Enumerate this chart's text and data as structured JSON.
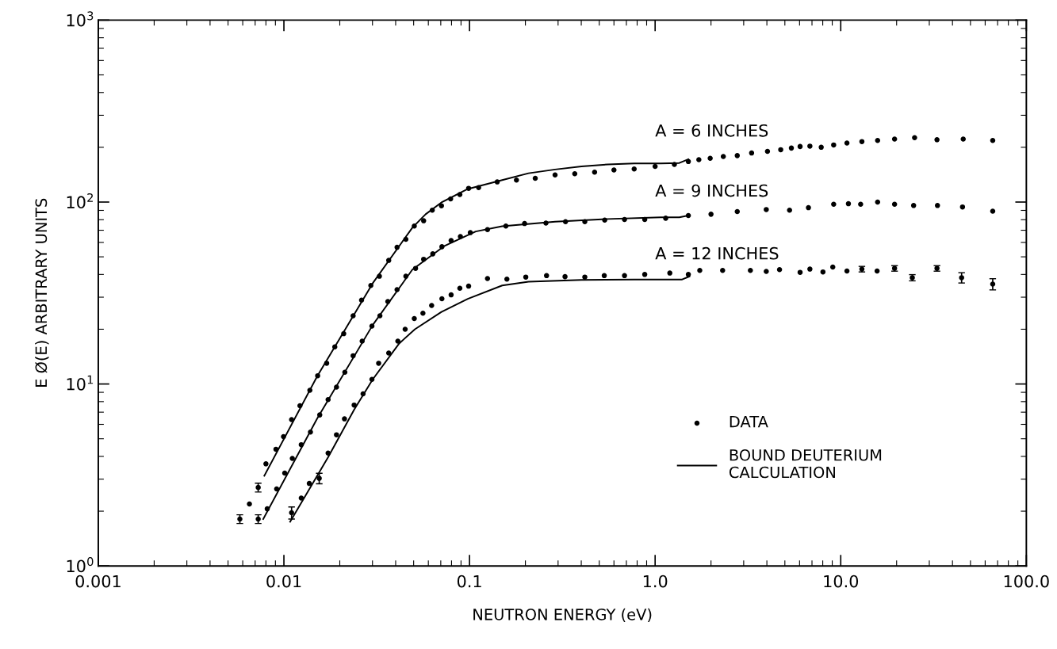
{
  "chart_data": {
    "type": "scatter",
    "xlabel": "NEUTRON ENERGY (eV)",
    "ylabel": "E Ø(E) ARBITRARY UNITS",
    "log": "xy",
    "xlim": [
      0.001,
      100
    ],
    "ylim": [
      1,
      1000
    ],
    "xticks": [
      {
        "value": 0.001,
        "label": "0.001"
      },
      {
        "value": 0.01,
        "label": "0.01"
      },
      {
        "value": 0.1,
        "label": "0.1"
      },
      {
        "value": 1,
        "label": "1.0"
      },
      {
        "value": 10,
        "label": "10.0"
      },
      {
        "value": 100,
        "label": "100.0"
      }
    ],
    "yticks": [
      {
        "value": 1,
        "label": "10$^{0}$"
      },
      {
        "value": 10,
        "label": "10$^{1}$"
      },
      {
        "value": 100,
        "label": "10$^{2}$"
      },
      {
        "value": 1000,
        "label": "10$^{3}$"
      }
    ],
    "grid": false,
    "legend": "bottom right",
    "line_style": "solid",
    "annotations": [
      "A = 6 INCHES",
      "A = 9 INCHES",
      "A = 12 INCHES"
    ],
    "series": [
      {
        "name": "DATA",
        "marker": "circle",
        "color": "#000000",
        "x": [
          0.00579,
          0.00652,
          0.00727,
          0.008,
          0.00906,
          0.00995,
          0.011,
          0.0122,
          0.0138,
          0.0152,
          0.017,
          0.0188,
          0.021,
          0.0236,
          0.0262,
          0.0294,
          0.0327,
          0.0367,
          0.0407,
          0.0454,
          0.0504,
          0.0566,
          0.063,
          0.0706,
          0.0791,
          0.0887,
          0.0989,
          0.112,
          0.141,
          0.179,
          0.226,
          0.289,
          0.369,
          0.472,
          0.6,
          0.771,
          1.0,
          1.27,
          1.51,
          1.72,
          1.98,
          2.33,
          2.77,
          3.31,
          4.03,
          4.75,
          5.42,
          6.04,
          6.82,
          7.85,
          9.16,
          10.8,
          13.0,
          15.8,
          19.5,
          25.0,
          33.0,
          45.7,
          65.9
        ],
        "values": [
          1.81,
          2.19,
          2.7,
          3.64,
          4.38,
          5.14,
          6.37,
          7.6,
          9.23,
          11.1,
          13.0,
          16.0,
          18.9,
          23.7,
          28.9,
          34.8,
          39.1,
          47.8,
          56.4,
          62.4,
          73.8,
          78.9,
          90.2,
          95.4,
          104,
          110,
          119,
          120,
          129,
          132,
          135,
          141,
          143,
          146,
          150,
          152,
          157,
          161,
          167,
          171,
          174,
          178,
          180,
          186,
          190,
          194,
          198,
          202,
          203,
          200,
          206,
          211,
          215,
          218,
          222,
          226,
          220,
          222,
          218
        ],
        "errors": [
          0.1,
          null,
          0.15,
          null,
          null,
          null,
          null,
          null,
          null,
          null,
          null,
          null,
          null,
          null,
          null,
          null,
          null,
          null,
          null,
          null,
          null,
          null,
          null,
          null,
          null,
          null,
          null,
          null,
          null,
          null,
          null,
          null,
          null,
          null,
          null,
          null,
          null,
          null,
          null,
          null,
          null,
          null,
          null,
          null,
          null,
          null,
          null,
          null,
          null,
          null,
          null,
          null,
          null,
          null,
          null,
          null,
          null,
          null,
          null
        ]
      },
      {
        "marker": "circle",
        "color": "#000000",
        "x": [
          0.00727,
          0.00813,
          0.00914,
          0.0101,
          0.0111,
          0.0124,
          0.0139,
          0.0156,
          0.0173,
          0.0192,
          0.0213,
          0.0236,
          0.0264,
          0.0298,
          0.0329,
          0.0363,
          0.0407,
          0.0454,
          0.0512,
          0.0566,
          0.0634,
          0.071,
          0.0796,
          0.0893,
          0.101,
          0.125,
          0.157,
          0.198,
          0.258,
          0.329,
          0.418,
          0.535,
          0.684,
          0.879,
          1.14,
          1.51,
          2.0,
          2.77,
          3.97,
          5.3,
          6.7,
          9.16,
          11.0,
          12.8,
          15.8,
          19.5,
          24.7,
          33.2,
          45.3,
          65.9
        ],
        "values": [
          1.81,
          2.06,
          2.65,
          3.24,
          3.9,
          4.64,
          5.44,
          6.76,
          8.21,
          9.61,
          11.6,
          14.3,
          17.2,
          20.8,
          23.7,
          28.4,
          33.0,
          39.1,
          43.2,
          48.5,
          51.9,
          56.8,
          61.4,
          64.6,
          67.9,
          70.6,
          73.8,
          76.2,
          76.7,
          78.0,
          78.0,
          79.6,
          80.2,
          80.2,
          81.5,
          84.3,
          85.7,
          88.6,
          91.0,
          90.2,
          93.1,
          97.3,
          97.9,
          97.3,
          100,
          97.3,
          95.7,
          95.7,
          94.0,
          89.1
        ],
        "errors": [
          0.1,
          null,
          null,
          null,
          null,
          null,
          null,
          null,
          null,
          null,
          null,
          null,
          null,
          null,
          null,
          null,
          null,
          null,
          null,
          null,
          null,
          null,
          null,
          null,
          null,
          null,
          null,
          null,
          null,
          null,
          null,
          null,
          null,
          null,
          null,
          null,
          null,
          null,
          null,
          null,
          null,
          null,
          null,
          null,
          null,
          null,
          null,
          null,
          null,
          null
        ]
      },
      {
        "marker": "circle",
        "color": "#000000",
        "x": [
          0.011,
          0.0124,
          0.0137,
          0.0155,
          0.0173,
          0.0192,
          0.0212,
          0.0239,
          0.0267,
          0.0298,
          0.0324,
          0.0367,
          0.0411,
          0.045,
          0.0504,
          0.0561,
          0.0625,
          0.071,
          0.0796,
          0.0887,
          0.0989,
          0.125,
          0.159,
          0.201,
          0.26,
          0.327,
          0.418,
          0.532,
          0.684,
          0.879,
          1.2,
          1.51,
          1.74,
          2.31,
          3.26,
          3.97,
          4.68,
          6.04,
          6.82,
          8.02,
          9.06,
          10.8,
          13.0,
          15.7,
          19.5,
          24.3,
          33.0,
          44.8,
          65.9
        ],
        "values": [
          1.96,
          2.36,
          2.84,
          3.03,
          4.17,
          5.26,
          6.43,
          7.66,
          8.83,
          10.6,
          13.0,
          14.8,
          17.2,
          20.0,
          22.9,
          24.5,
          27.0,
          29.4,
          30.9,
          33.6,
          34.5,
          38.0,
          37.7,
          38.7,
          39.4,
          38.9,
          38.7,
          39.4,
          39.4,
          40.0,
          40.7,
          40.0,
          42.1,
          42.1,
          42.1,
          41.6,
          42.5,
          41.1,
          42.8,
          41.3,
          43.9,
          41.8,
          42.8,
          41.8,
          43.2,
          38.4,
          43.2,
          38.4,
          35.4
        ],
        "errors": [
          0.15,
          null,
          null,
          0.2,
          null,
          null,
          null,
          null,
          null,
          null,
          null,
          null,
          null,
          null,
          null,
          null,
          null,
          null,
          null,
          null,
          null,
          null,
          null,
          null,
          null,
          null,
          null,
          null,
          null,
          null,
          null,
          null,
          null,
          null,
          null,
          null,
          null,
          null,
          null,
          null,
          null,
          null,
          1.5,
          null,
          1.5,
          1.5,
          1.5,
          2.5,
          2.5
        ]
      },
      {
        "type": "line",
        "name": "BOUND DEUTERIUM\nCALCULATION",
        "color": "#000000",
        "x": [
          0.00784,
          0.0151,
          0.0301,
          0.0492,
          0.058,
          0.0706,
          0.0979,
          0.15,
          0.208,
          0.289,
          0.401,
          0.556,
          0.771,
          1.07,
          1.35,
          1.51
        ],
        "values": [
          3.13,
          11.0,
          35.8,
          72.3,
          85.7,
          99.5,
          118,
          132,
          144,
          151,
          157,
          161,
          163,
          163,
          164,
          172
        ]
      },
      {
        "type": "line",
        "color": "#000000",
        "x": [
          0.00774,
          0.0151,
          0.0301,
          0.0492,
          0.0729,
          0.108,
          0.15,
          0.289,
          0.556,
          1.07,
          1.35,
          1.51
        ],
        "values": [
          1.81,
          6.45,
          21.1,
          42.5,
          57.2,
          68.9,
          73.6,
          78.0,
          80.7,
          82.4,
          82.4,
          84.3
        ]
      },
      {
        "type": "line",
        "color": "#000000",
        "x": [
          0.0108,
          0.0173,
          0.0239,
          0.0301,
          0.0418,
          0.0508,
          0.0706,
          0.0979,
          0.15,
          0.208,
          0.401,
          0.771,
          1.39,
          1.53
        ],
        "values": [
          1.75,
          3.96,
          7.23,
          10.6,
          16.7,
          20.0,
          24.9,
          29.4,
          34.8,
          36.5,
          37.3,
          37.5,
          37.5,
          39.0
        ]
      }
    ]
  }
}
